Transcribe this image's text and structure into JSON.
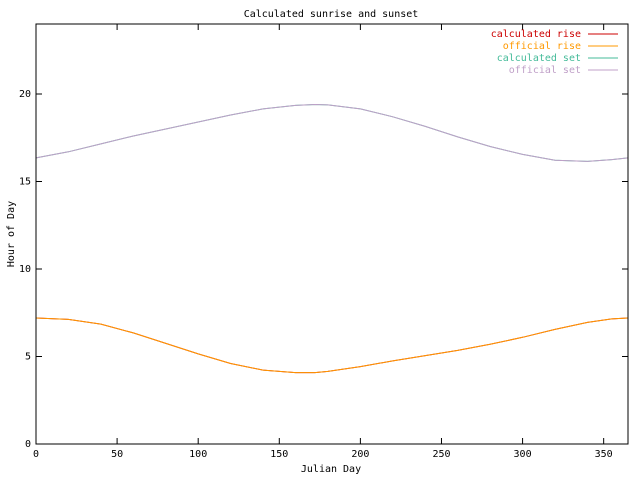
{
  "chart_data": {
    "type": "line",
    "title": "Calculated sunrise and sunset",
    "xlabel": "Julian Day",
    "ylabel": "Hour of Day",
    "xlim": [
      0,
      365
    ],
    "ylim": [
      0,
      24
    ],
    "xticks": [
      0,
      50,
      100,
      150,
      200,
      250,
      300,
      350
    ],
    "yticks": [
      0,
      5,
      10,
      15,
      20
    ],
    "grid": false,
    "legend_position": "top-right",
    "x": [
      0,
      20,
      40,
      60,
      80,
      100,
      120,
      140,
      160,
      172,
      180,
      200,
      220,
      240,
      260,
      280,
      300,
      320,
      340,
      355,
      365
    ],
    "series": [
      {
        "name": "calculated rise",
        "color": "#cc0000",
        "values": [
          7.2,
          7.12,
          6.85,
          6.35,
          5.75,
          5.15,
          4.6,
          4.22,
          4.08,
          4.08,
          4.15,
          4.42,
          4.75,
          5.05,
          5.35,
          5.7,
          6.1,
          6.55,
          6.95,
          7.15,
          7.2
        ]
      },
      {
        "name": "official rise",
        "color": "#ff9900",
        "values": [
          7.2,
          7.12,
          6.85,
          6.35,
          5.75,
          5.15,
          4.6,
          4.22,
          4.08,
          4.08,
          4.15,
          4.42,
          4.75,
          5.05,
          5.35,
          5.7,
          6.1,
          6.55,
          6.95,
          7.15,
          7.2
        ]
      },
      {
        "name": "calculated set",
        "color": "#44bb99",
        "values": [
          16.35,
          16.7,
          17.15,
          17.6,
          18.0,
          18.4,
          18.8,
          19.15,
          19.35,
          19.4,
          19.38,
          19.15,
          18.7,
          18.15,
          17.55,
          17.0,
          16.55,
          16.22,
          16.15,
          16.25,
          16.35
        ]
      },
      {
        "name": "official set",
        "color": "#c0a0c8",
        "values": [
          16.35,
          16.7,
          17.15,
          17.6,
          18.0,
          18.4,
          18.8,
          19.15,
          19.35,
          19.4,
          19.38,
          19.15,
          18.7,
          18.15,
          17.55,
          17.0,
          16.55,
          16.22,
          16.15,
          16.25,
          16.35
        ]
      }
    ]
  }
}
